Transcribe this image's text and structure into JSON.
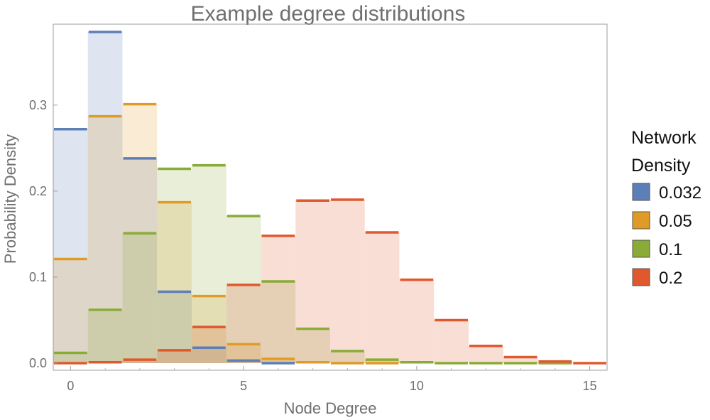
{
  "chart_data": {
    "type": "histogram",
    "title": "Example degree distributions",
    "xlabel": "Node Degree",
    "ylabel": "Probability Density",
    "xlim": [
      -0.5,
      15.5
    ],
    "ylim": [
      0,
      0.385
    ],
    "x_ticks": [
      0,
      5,
      10,
      15
    ],
    "y_ticks": [
      0.0,
      0.1,
      0.2,
      0.3
    ],
    "y_tick_labels": [
      "0.0",
      "0.1",
      "0.2",
      "0.3"
    ],
    "grid": false,
    "legend": {
      "title_lines": [
        "Network",
        "Density"
      ],
      "placement": "right"
    },
    "bin_width": 1,
    "series": [
      {
        "name": "0.032",
        "color": "#5b7fb6",
        "fill": "#dfe6f2",
        "x": [
          0,
          1,
          2,
          3,
          4,
          5,
          6
        ],
        "values": [
          0.272,
          0.385,
          0.238,
          0.083,
          0.018,
          0.003,
          0.0
        ]
      },
      {
        "name": "0.05",
        "color": "#e09b26",
        "fill": "#f8e6c7",
        "x": [
          0,
          1,
          2,
          3,
          4,
          5,
          6,
          7,
          8,
          9
        ],
        "values": [
          0.121,
          0.287,
          0.301,
          0.187,
          0.078,
          0.022,
          0.005,
          0.001,
          0.0,
          0.0
        ]
      },
      {
        "name": "0.1",
        "color": "#8aab36",
        "fill": "#e5edd0",
        "x": [
          0,
          1,
          2,
          3,
          4,
          5,
          6,
          7,
          8,
          9,
          10,
          11,
          12,
          13,
          14
        ],
        "values": [
          0.012,
          0.062,
          0.151,
          0.226,
          0.23,
          0.171,
          0.095,
          0.04,
          0.014,
          0.004,
          0.001,
          0.0,
          0.0,
          0.0,
          0.0
        ]
      },
      {
        "name": "0.2",
        "color": "#e0582e",
        "fill": "#f8d8cf",
        "x": [
          0,
          1,
          2,
          3,
          4,
          5,
          6,
          7,
          8,
          9,
          10,
          11,
          12,
          13,
          14,
          15
        ],
        "values": [
          0.0,
          0.001,
          0.004,
          0.015,
          0.042,
          0.091,
          0.148,
          0.189,
          0.19,
          0.152,
          0.097,
          0.05,
          0.02,
          0.007,
          0.002,
          0.0
        ]
      }
    ]
  }
}
